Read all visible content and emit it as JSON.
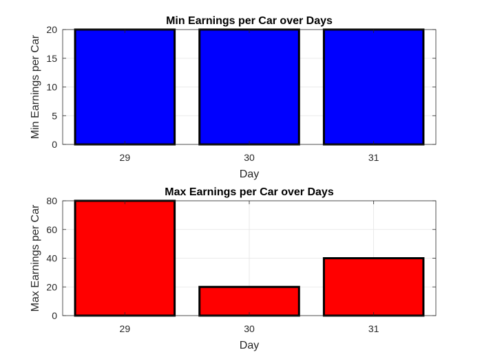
{
  "chart_data": [
    {
      "type": "bar",
      "title": "Min Earnings per Car over Days",
      "xlabel": "Day",
      "ylabel": "Min Earnings per Car",
      "categories": [
        "29",
        "30",
        "31"
      ],
      "values": [
        20,
        20,
        20
      ],
      "ylim": [
        0,
        20
      ],
      "yticks": [
        "0",
        "5",
        "10",
        "15",
        "20"
      ],
      "grid": true,
      "bar_color": "#0000ff",
      "edge_color": "#000000"
    },
    {
      "type": "bar",
      "title": "Max Earnings per Car over Days",
      "xlabel": "Day",
      "ylabel": "Max Earnings per Car",
      "categories": [
        "29",
        "30",
        "31"
      ],
      "values": [
        80,
        20,
        40
      ],
      "ylim": [
        0,
        80
      ],
      "yticks": [
        "0",
        "20",
        "40",
        "60",
        "80"
      ],
      "grid": true,
      "bar_color": "#ff0000",
      "edge_color": "#000000"
    }
  ]
}
